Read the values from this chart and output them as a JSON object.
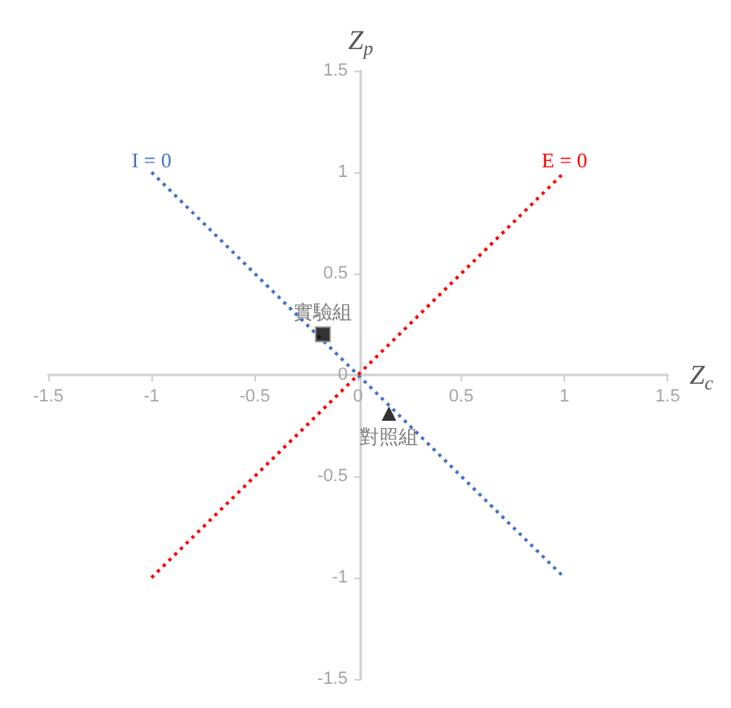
{
  "chart_data": {
    "type": "scatter",
    "xlabel": "Z$_{c}$",
    "ylabel": "Z$_{p}$",
    "xlim": [
      -1.5,
      1.5
    ],
    "xticks": [
      -1.5,
      -1,
      -0.5,
      0,
      0.5,
      1,
      1.5
    ],
    "ylim": [
      -1.5,
      1.5
    ],
    "yticks": [
      -1.5,
      -1,
      -0.5,
      0,
      0.5,
      1,
      1.5
    ],
    "grid": false,
    "legend": false,
    "series": [
      {
        "name": "I = 0",
        "type": "line",
        "color": "#4472c4",
        "x": [
          -1,
          1
        ],
        "values": [
          1,
          -1
        ],
        "line_style": "dotted",
        "marker": "none"
      },
      {
        "name": "E = 0",
        "type": "line",
        "color": "#ff0000",
        "x": [
          -1,
          1
        ],
        "values": [
          -1,
          1
        ],
        "line_style": "dotted",
        "marker": "none"
      },
      {
        "name": "實驗組",
        "type": "scatter",
        "color": "#000000",
        "x": [
          -0.17
        ],
        "values": [
          0.2
        ],
        "marker": "square"
      },
      {
        "name": "對照組",
        "type": "scatter",
        "color": "#000000",
        "x": [
          0.15
        ],
        "values": [
          -0.19
        ],
        "marker": "triangle"
      }
    ]
  }
}
